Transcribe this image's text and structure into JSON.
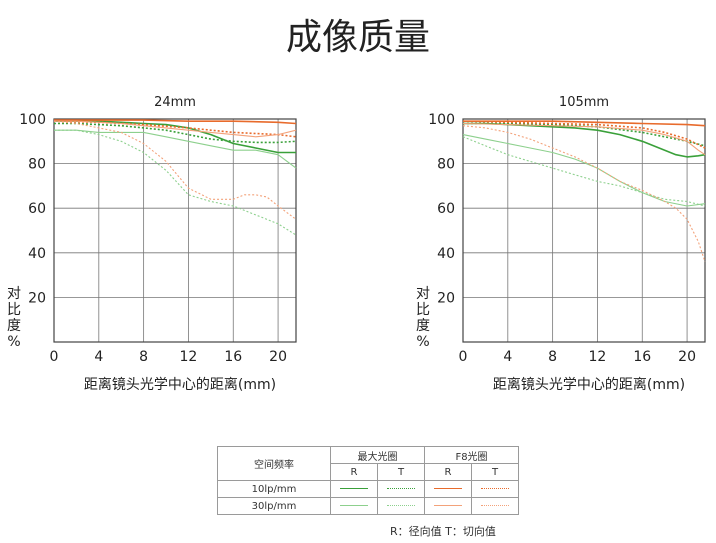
{
  "page_title": "成像质量",
  "colors": {
    "green_10": "#3aa03a",
    "green_30": "#8dd08d",
    "orange_10": "#e86b2c",
    "orange_30": "#f3a27a",
    "grid": "#777777"
  },
  "chart_data": [
    {
      "type": "line",
      "title": "24mm",
      "xlabel": "距离镜头光学中心的距离(mm)",
      "ylabel": "对比度%",
      "xlim": [
        0,
        21.6
      ],
      "ylim": [
        0,
        100
      ],
      "xticks": [
        0,
        4,
        8,
        12,
        16,
        20
      ],
      "yticks": [
        20,
        40,
        60,
        80,
        100
      ],
      "tick_labels_x": [
        "0",
        "4",
        "8",
        "12",
        "16",
        "20"
      ],
      "tick_labels_y": [
        "20",
        "40",
        "60",
        "80",
        "100"
      ],
      "series": [
        {
          "freq": "10lp/mm",
          "aperture": "max",
          "dir": "R",
          "x": [
            0,
            2,
            4,
            6,
            8,
            10,
            12,
            14,
            16,
            18,
            20,
            21.6
          ],
          "y": [
            99,
            99,
            99,
            98.5,
            98,
            97.5,
            96,
            93,
            89,
            87,
            85,
            85
          ]
        },
        {
          "freq": "10lp/mm",
          "aperture": "max",
          "dir": "T",
          "x": [
            0,
            2,
            4,
            6,
            8,
            10,
            12,
            14,
            16,
            18,
            20,
            21.6
          ],
          "y": [
            98,
            98,
            97.5,
            97,
            96,
            95,
            93,
            91,
            90,
            89.5,
            89.5,
            90
          ]
        },
        {
          "freq": "30lp/mm",
          "aperture": "max",
          "dir": "R",
          "x": [
            0,
            2,
            4,
            6,
            8,
            10,
            12,
            14,
            16,
            17,
            18,
            20,
            21.6
          ],
          "y": [
            95,
            95,
            94,
            94,
            94,
            92,
            90,
            88,
            86,
            86,
            86,
            84,
            78
          ]
        },
        {
          "freq": "30lp/mm",
          "aperture": "max",
          "dir": "T",
          "x": [
            0,
            2,
            4,
            6,
            8,
            10,
            12,
            14,
            16,
            18,
            20,
            21.6
          ],
          "y": [
            95,
            95,
            93,
            90,
            85,
            77,
            66,
            63,
            61,
            57,
            53,
            48
          ]
        },
        {
          "freq": "10lp/mm",
          "aperture": "F8",
          "dir": "R",
          "x": [
            0,
            4,
            8,
            12,
            16,
            20,
            21.6
          ],
          "y": [
            99.5,
            99.5,
            99.5,
            99,
            99,
            98.5,
            98
          ]
        },
        {
          "freq": "10lp/mm",
          "aperture": "F8",
          "dir": "T",
          "x": [
            0,
            4,
            8,
            12,
            16,
            20,
            21.6
          ],
          "y": [
            99,
            98.5,
            97.5,
            96,
            94,
            93,
            92
          ]
        },
        {
          "freq": "30lp/mm",
          "aperture": "F8",
          "dir": "R",
          "x": [
            0,
            2,
            4,
            6,
            8,
            10,
            12,
            14,
            16,
            18,
            20,
            21.6
          ],
          "y": [
            99,
            99,
            98.5,
            98,
            97,
            96,
            95,
            94,
            93,
            92,
            93,
            95
          ]
        },
        {
          "freq": "30lp/mm",
          "aperture": "F8",
          "dir": "T",
          "x": [
            0,
            2,
            4,
            6,
            8,
            10,
            11,
            12,
            14,
            16,
            17,
            18,
            19,
            20,
            21.6
          ],
          "y": [
            99,
            98,
            96,
            94,
            89,
            81,
            75,
            69,
            64,
            64,
            66,
            66,
            65,
            61,
            55
          ]
        }
      ]
    },
    {
      "type": "line",
      "title": "105mm",
      "xlabel": "距离镜头光学中心的距离(mm)",
      "ylabel": "对比度%",
      "xlim": [
        0,
        21.6
      ],
      "ylim": [
        0,
        100
      ],
      "xticks": [
        0,
        4,
        8,
        12,
        16,
        20
      ],
      "yticks": [
        20,
        40,
        60,
        80,
        100
      ],
      "tick_labels_x": [
        "0",
        "4",
        "8",
        "12",
        "16",
        "20"
      ],
      "tick_labels_y": [
        "20",
        "40",
        "60",
        "80",
        "100"
      ],
      "series": [
        {
          "freq": "10lp/mm",
          "aperture": "max",
          "dir": "R",
          "x": [
            0,
            2,
            4,
            6,
            8,
            10,
            12,
            14,
            16,
            18,
            19,
            20,
            21,
            21.6
          ],
          "y": [
            98,
            98,
            97.5,
            97,
            96.5,
            96,
            95,
            93,
            90,
            86,
            84,
            83,
            83.5,
            84
          ]
        },
        {
          "freq": "10lp/mm",
          "aperture": "max",
          "dir": "T",
          "x": [
            0,
            4,
            8,
            12,
            16,
            18,
            20,
            21.6
          ],
          "y": [
            98,
            98,
            97.5,
            96.5,
            94,
            92,
            90,
            88
          ]
        },
        {
          "freq": "30lp/mm",
          "aperture": "max",
          "dir": "R",
          "x": [
            0,
            2,
            4,
            6,
            8,
            10,
            12,
            14,
            16,
            18,
            20,
            21.6
          ],
          "y": [
            93,
            91,
            89,
            87,
            85,
            82,
            78,
            72,
            67,
            63,
            61,
            62
          ]
        },
        {
          "freq": "30lp/mm",
          "aperture": "max",
          "dir": "T",
          "x": [
            0,
            2,
            4,
            6,
            8,
            10,
            12,
            14,
            16,
            18,
            20,
            21.6
          ],
          "y": [
            92,
            88,
            84,
            81,
            78,
            75,
            72,
            70,
            67,
            64,
            63,
            61
          ]
        },
        {
          "freq": "10lp/mm",
          "aperture": "F8",
          "dir": "R",
          "x": [
            0,
            4,
            8,
            12,
            16,
            20,
            21.6
          ],
          "y": [
            99,
            99,
            99,
            98.5,
            98,
            97.5,
            97
          ]
        },
        {
          "freq": "10lp/mm",
          "aperture": "F8",
          "dir": "T",
          "x": [
            0,
            4,
            8,
            12,
            16,
            18,
            20,
            21.6
          ],
          "y": [
            99,
            98.5,
            98,
            97.5,
            96,
            94,
            91,
            87
          ]
        },
        {
          "freq": "30lp/mm",
          "aperture": "F8",
          "dir": "R",
          "x": [
            0,
            4,
            8,
            12,
            16,
            18,
            20,
            21,
            21.6
          ],
          "y": [
            98,
            97.5,
            97,
            96.5,
            95,
            93,
            90,
            86,
            84
          ]
        },
        {
          "freq": "30lp/mm",
          "aperture": "F8",
          "dir": "T",
          "x": [
            0,
            2,
            4,
            6,
            8,
            10,
            12,
            14,
            16,
            18,
            19,
            20,
            21,
            21.6
          ],
          "y": [
            97,
            96,
            94,
            91,
            87,
            83,
            78,
            72,
            68,
            63,
            60,
            55,
            45,
            36
          ]
        }
      ]
    }
  ],
  "legend": {
    "header_freq": "空间频率",
    "header_max": "最大光圈",
    "header_f8": "F8光圈",
    "r": "R",
    "t": "T",
    "row1": "10lp/mm",
    "row2": "30lp/mm",
    "note": "R：径向值    T：切向值"
  }
}
